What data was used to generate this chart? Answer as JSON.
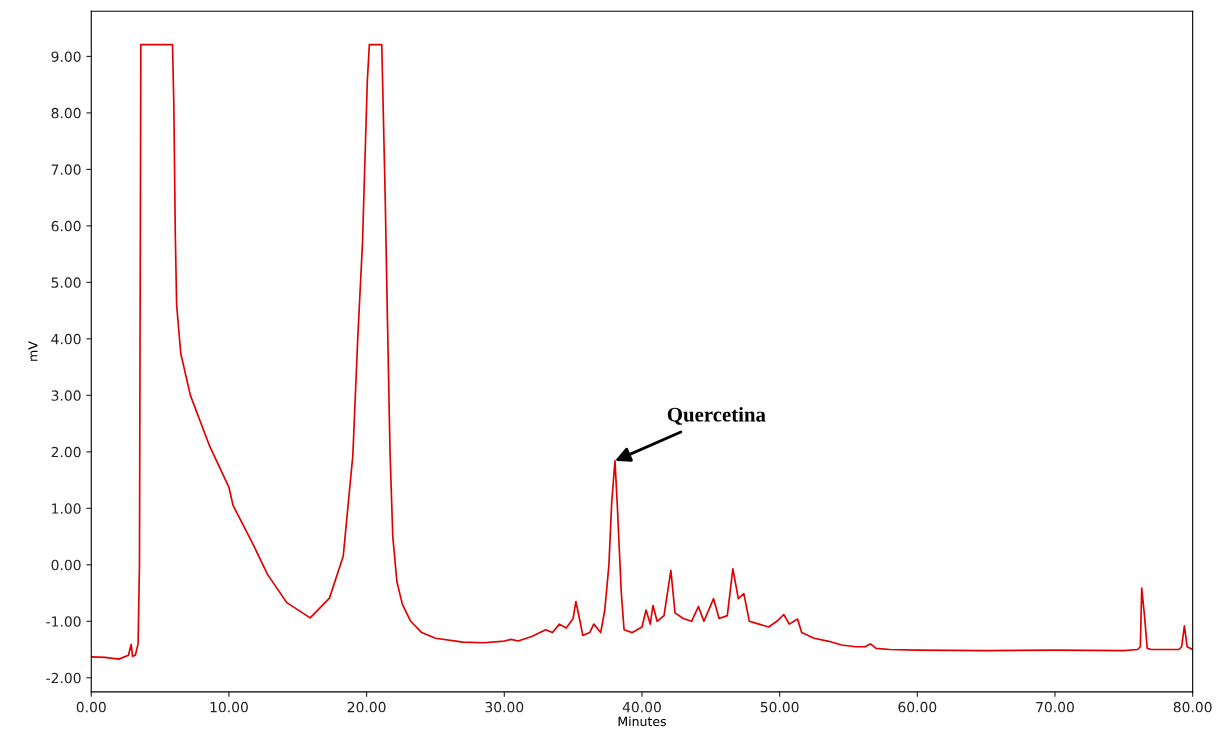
{
  "chart_data": {
    "type": "line",
    "xlabel": "Minutes",
    "ylabel": "mV",
    "xlim": [
      0,
      80
    ],
    "ylim": [
      -2.25,
      9.8
    ],
    "xticks": [
      {
        "value": 0,
        "label": "0.00"
      },
      {
        "value": 10,
        "label": "10.00"
      },
      {
        "value": 20,
        "label": "20.00"
      },
      {
        "value": 30,
        "label": "30.00"
      },
      {
        "value": 40,
        "label": "40.00"
      },
      {
        "value": 50,
        "label": "50.00"
      },
      {
        "value": 60,
        "label": "60.00"
      },
      {
        "value": 70,
        "label": "70.00"
      },
      {
        "value": 80,
        "label": "80.00"
      }
    ],
    "yticks": [
      {
        "value": -2,
        "label": "-2.00"
      },
      {
        "value": -1,
        "label": "-1.00"
      },
      {
        "value": 0,
        "label": "0.00"
      },
      {
        "value": 1,
        "label": "1.00"
      },
      {
        "value": 2,
        "label": "2.00"
      },
      {
        "value": 3,
        "label": "3.00"
      },
      {
        "value": 4,
        "label": "4.00"
      },
      {
        "value": 5,
        "label": "5.00"
      },
      {
        "value": 6,
        "label": "6.00"
      },
      {
        "value": 7,
        "label": "7.00"
      },
      {
        "value": 8,
        "label": "8.00"
      },
      {
        "value": 9,
        "label": "9.00"
      }
    ],
    "grid": false,
    "marker": "none",
    "line_style": "solid",
    "annotations": [
      {
        "text": "Quercetina",
        "x": 38.04,
        "y": 1.84
      }
    ],
    "series": [
      {
        "color": "#e00000",
        "x": [
          0,
          1,
          2,
          2.7,
          2.9,
          3.0,
          3.2,
          3.4,
          3.5,
          3.6,
          4.5,
          5.9,
          6.0,
          6.1,
          6.2,
          6.5,
          7.2,
          8.6,
          10.0,
          10.3,
          11.7,
          12.8,
          14.2,
          15.9,
          17.3,
          18.3,
          19.0,
          19.35,
          19.7,
          20.05,
          20.2,
          21.1,
          21.35,
          21.5,
          21.7,
          21.9,
          22.2,
          22.6,
          23.2,
          24,
          25,
          27,
          28.5,
          30,
          30.5,
          31,
          32,
          33,
          33.5,
          34,
          34.5,
          35,
          35.2,
          35.5,
          35.7,
          36.2,
          36.5,
          37,
          37.3,
          37.6,
          37.8,
          38.04,
          38.2,
          38.5,
          38.7,
          39.3,
          40.0,
          40.3,
          40.6,
          40.8,
          41.1,
          41.6,
          42.1,
          42.4,
          43.0,
          43.6,
          44.1,
          44.5,
          45.2,
          45.6,
          46.2,
          46.6,
          47.0,
          47.4,
          47.8,
          48.5,
          49.2,
          49.8,
          50.3,
          50.7,
          51.3,
          51.6,
          52.5,
          53.5,
          54.5,
          55.5,
          56.2,
          56.6,
          57.0,
          58,
          60,
          65,
          70,
          75,
          76.0,
          76.2,
          76.3,
          76.5,
          76.7,
          77,
          79.0,
          79.2,
          79.4,
          79.6,
          80
        ],
        "values": [
          -1.63,
          -1.64,
          -1.67,
          -1.6,
          -1.41,
          -1.62,
          -1.6,
          -1.4,
          0.0,
          9.21,
          9.21,
          9.21,
          8.1,
          5.9,
          4.6,
          3.74,
          3.0,
          2.1,
          1.37,
          1.05,
          0.39,
          -0.17,
          -0.67,
          -0.94,
          -0.59,
          0.15,
          1.94,
          3.98,
          5.7,
          8.56,
          9.21,
          9.21,
          6.5,
          4.5,
          2.0,
          0.5,
          -0.3,
          -0.7,
          -1.0,
          -1.2,
          -1.3,
          -1.37,
          -1.38,
          -1.35,
          -1.32,
          -1.35,
          -1.27,
          -1.15,
          -1.2,
          -1.05,
          -1.12,
          -0.95,
          -0.65,
          -1.0,
          -1.25,
          -1.2,
          -1.05,
          -1.2,
          -0.8,
          0.0,
          1.1,
          1.84,
          1.1,
          -0.5,
          -1.15,
          -1.2,
          -1.1,
          -0.8,
          -1.05,
          -0.72,
          -1.0,
          -0.9,
          -0.1,
          -0.85,
          -0.95,
          -1.0,
          -0.74,
          -1.0,
          -0.6,
          -0.95,
          -0.9,
          -0.07,
          -0.6,
          -0.51,
          -1.0,
          -1.05,
          -1.1,
          -1.0,
          -0.88,
          -1.05,
          -0.96,
          -1.2,
          -1.3,
          -1.35,
          -1.42,
          -1.45,
          -1.45,
          -1.4,
          -1.48,
          -1.5,
          -1.51,
          -1.52,
          -1.51,
          -1.52,
          -1.5,
          -1.45,
          -0.41,
          -0.9,
          -1.48,
          -1.5,
          -1.5,
          -1.45,
          -1.08,
          -1.45,
          -1.5
        ]
      }
    ]
  }
}
